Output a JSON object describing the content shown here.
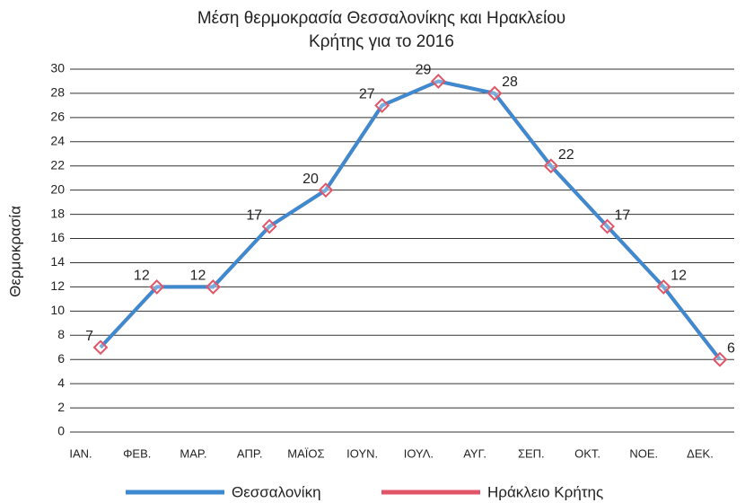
{
  "chart_data": {
    "type": "line",
    "title": "Μέση θερμοκρασία Θεσσαλονίκης και Ηρακλείου Κρήτης για το 2016",
    "ylabel": "Θερμοκρασία",
    "categories": [
      "ΙΑΝ.",
      "ΦΕΒ.",
      "ΜΑΡ.",
      "ΑΠΡ.",
      "ΜΑΪΟΣ",
      "ΙΟΥΝ.",
      "ΙΟΥΛ.",
      "ΑΥΓ.",
      "ΣΕΠ.",
      "ΟΚΤ.",
      "ΝΟΕ.",
      "ΔΕΚ."
    ],
    "series": [
      {
        "name": "Θεσσαλονίκη",
        "color": "#3d8ad0",
        "values": [
          7,
          12,
          12,
          17,
          20,
          27,
          29,
          28,
          22,
          17,
          12,
          6
        ]
      },
      {
        "name": "Ηράκλειο Κρήτης",
        "color": "#e05568",
        "values": [
          7,
          12,
          12,
          17,
          20,
          27,
          29,
          28,
          22,
          17,
          12,
          6
        ]
      }
    ],
    "ylim": [
      0,
      30
    ],
    "yticks": [
      0,
      2,
      4,
      6,
      8,
      10,
      12,
      14,
      16,
      18,
      20,
      22,
      24,
      26,
      28,
      30
    ],
    "grid": true
  }
}
